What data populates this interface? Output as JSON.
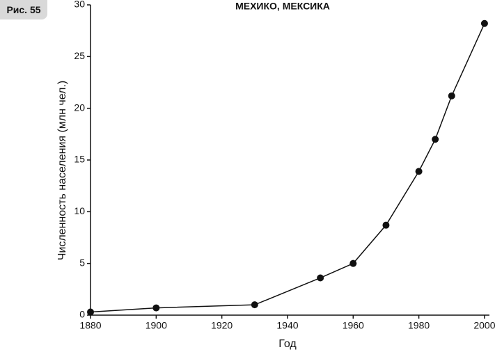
{
  "chart_data": {
    "type": "line",
    "title": "МЕХИКО, МЕКСИКА",
    "figure_label": "Рис. 55",
    "x_label": "Год",
    "y_label": "Численность населения (млн чел.)",
    "x": [
      1880,
      1900,
      1930,
      1950,
      1960,
      1970,
      1980,
      1985,
      1990,
      2000
    ],
    "series": [
      {
        "name": "Мехико",
        "color": "#111111",
        "values": [
          0.3,
          0.7,
          1.0,
          3.6,
          5.0,
          8.7,
          13.9,
          17.0,
          21.2,
          28.2
        ]
      }
    ],
    "xlim": [
      1880,
      2001.5
    ],
    "xticks": [
      1880,
      1900,
      1920,
      1940,
      1960,
      1980,
      2000
    ],
    "ylim": [
      0,
      30
    ],
    "yticks": [
      0,
      5,
      10,
      15,
      20,
      25,
      30
    ],
    "grid": false
  }
}
